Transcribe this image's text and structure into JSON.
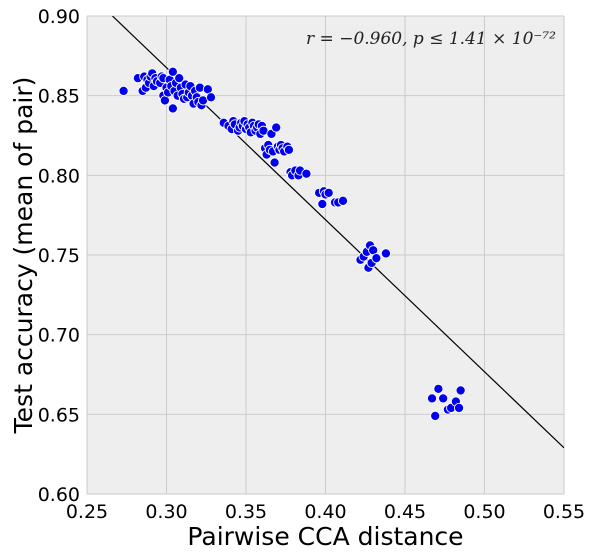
{
  "chart_data": {
    "type": "scatter",
    "title": "",
    "xlabel": "Pairwise CCA distance",
    "ylabel": "Test accuracy (mean of pair)",
    "xlim": [
      0.25,
      0.55
    ],
    "ylim": [
      0.6,
      0.9
    ],
    "xticks": [
      "0.25",
      "0.30",
      "0.35",
      "0.40",
      "0.45",
      "0.50",
      "0.55"
    ],
    "yticks": [
      "0.60",
      "0.65",
      "0.70",
      "0.75",
      "0.80",
      "0.85",
      "0.90"
    ],
    "grid": true,
    "annotation": "r = −0.960, p ≤ 1.41 × 10⁻⁷²",
    "point_color": "#0000ee",
    "fit_line_color": "#000000",
    "background_color": "#eeeeee",
    "fit_line": {
      "x": [
        0.266,
        0.55
      ],
      "y": [
        0.9,
        0.629
      ]
    },
    "points": [
      [
        0.273,
        0.853
      ],
      [
        0.282,
        0.861
      ],
      [
        0.285,
        0.853
      ],
      [
        0.286,
        0.862
      ],
      [
        0.287,
        0.855
      ],
      [
        0.288,
        0.86
      ],
      [
        0.289,
        0.858
      ],
      [
        0.29,
        0.862
      ],
      [
        0.291,
        0.864
      ],
      [
        0.292,
        0.856
      ],
      [
        0.293,
        0.861
      ],
      [
        0.294,
        0.859
      ],
      [
        0.296,
        0.858
      ],
      [
        0.297,
        0.862
      ],
      [
        0.298,
        0.861
      ],
      [
        0.298,
        0.85
      ],
      [
        0.299,
        0.847
      ],
      [
        0.3,
        0.855
      ],
      [
        0.301,
        0.852
      ],
      [
        0.302,
        0.86
      ],
      [
        0.303,
        0.856
      ],
      [
        0.304,
        0.865
      ],
      [
        0.304,
        0.842
      ],
      [
        0.305,
        0.853
      ],
      [
        0.306,
        0.858
      ],
      [
        0.307,
        0.85
      ],
      [
        0.308,
        0.861
      ],
      [
        0.309,
        0.855
      ],
      [
        0.31,
        0.851
      ],
      [
        0.311,
        0.848
      ],
      [
        0.312,
        0.857
      ],
      [
        0.313,
        0.849
      ],
      [
        0.314,
        0.852
      ],
      [
        0.315,
        0.856
      ],
      [
        0.316,
        0.85
      ],
      [
        0.317,
        0.845
      ],
      [
        0.318,
        0.853
      ],
      [
        0.319,
        0.849
      ],
      [
        0.32,
        0.846
      ],
      [
        0.321,
        0.855
      ],
      [
        0.322,
        0.844
      ],
      [
        0.323,
        0.847
      ],
      [
        0.326,
        0.854
      ],
      [
        0.328,
        0.849
      ],
      [
        0.336,
        0.833
      ],
      [
        0.339,
        0.831
      ],
      [
        0.341,
        0.829
      ],
      [
        0.342,
        0.834
      ],
      [
        0.343,
        0.832
      ],
      [
        0.345,
        0.828
      ],
      [
        0.346,
        0.83
      ],
      [
        0.347,
        0.833
      ],
      [
        0.348,
        0.831
      ],
      [
        0.349,
        0.834
      ],
      [
        0.35,
        0.829
      ],
      [
        0.351,
        0.832
      ],
      [
        0.352,
        0.83
      ],
      [
        0.353,
        0.827
      ],
      [
        0.354,
        0.833
      ],
      [
        0.355,
        0.831
      ],
      [
        0.356,
        0.828
      ],
      [
        0.357,
        0.83
      ],
      [
        0.358,
        0.832
      ],
      [
        0.359,
        0.826
      ],
      [
        0.36,
        0.831
      ],
      [
        0.361,
        0.828
      ],
      [
        0.362,
        0.817
      ],
      [
        0.363,
        0.813
      ],
      [
        0.364,
        0.819
      ],
      [
        0.365,
        0.816
      ],
      [
        0.366,
        0.826
      ],
      [
        0.367,
        0.815
      ],
      [
        0.368,
        0.808
      ],
      [
        0.369,
        0.83
      ],
      [
        0.37,
        0.818
      ],
      [
        0.371,
        0.816
      ],
      [
        0.372,
        0.819
      ],
      [
        0.373,
        0.817
      ],
      [
        0.374,
        0.815
      ],
      [
        0.376,
        0.818
      ],
      [
        0.377,
        0.816
      ],
      [
        0.378,
        0.802
      ],
      [
        0.379,
        0.8
      ],
      [
        0.381,
        0.803
      ],
      [
        0.383,
        0.8
      ],
      [
        0.384,
        0.803
      ],
      [
        0.388,
        0.801
      ],
      [
        0.396,
        0.789
      ],
      [
        0.398,
        0.782
      ],
      [
        0.399,
        0.79
      ],
      [
        0.4,
        0.788
      ],
      [
        0.402,
        0.789
      ],
      [
        0.406,
        0.783
      ],
      [
        0.408,
        0.783
      ],
      [
        0.411,
        0.784
      ],
      [
        0.422,
        0.747
      ],
      [
        0.424,
        0.749
      ],
      [
        0.426,
        0.752
      ],
      [
        0.427,
        0.742
      ],
      [
        0.428,
        0.756
      ],
      [
        0.429,
        0.745
      ],
      [
        0.43,
        0.753
      ],
      [
        0.432,
        0.748
      ],
      [
        0.438,
        0.751
      ],
      [
        0.467,
        0.66
      ],
      [
        0.469,
        0.649
      ],
      [
        0.471,
        0.666
      ],
      [
        0.474,
        0.66
      ],
      [
        0.477,
        0.653
      ],
      [
        0.479,
        0.654
      ],
      [
        0.482,
        0.658
      ],
      [
        0.484,
        0.654
      ],
      [
        0.485,
        0.665
      ]
    ]
  }
}
